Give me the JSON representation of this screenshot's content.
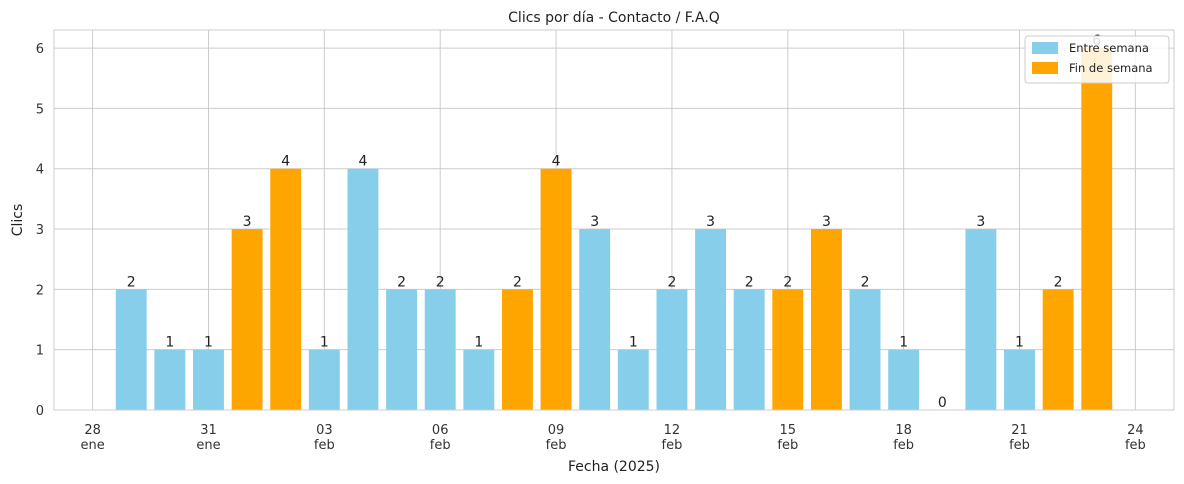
{
  "chart_data": {
    "type": "bar",
    "title": "Clics por día - Contacto / F.A.Q",
    "xlabel": "Fecha (2025)",
    "ylabel": "Clics",
    "ylim": [
      0,
      6.3
    ],
    "yticks": [
      0,
      1,
      2,
      3,
      4,
      5,
      6
    ],
    "grid": true,
    "legend_position": "top-right",
    "categories": [
      "2025-01-29",
      "2025-01-30",
      "2025-01-31",
      "2025-02-01",
      "2025-02-02",
      "2025-02-03",
      "2025-02-04",
      "2025-02-05",
      "2025-02-06",
      "2025-02-07",
      "2025-02-08",
      "2025-02-09",
      "2025-02-10",
      "2025-02-11",
      "2025-02-12",
      "2025-02-13",
      "2025-02-14",
      "2025-02-15",
      "2025-02-16",
      "2025-02-17",
      "2025-02-18",
      "2025-02-19",
      "2025-02-20",
      "2025-02-21",
      "2025-02-22",
      "2025-02-23"
    ],
    "values": [
      2,
      1,
      1,
      3,
      4,
      1,
      4,
      2,
      2,
      1,
      2,
      4,
      3,
      1,
      2,
      3,
      2,
      2,
      3,
      2,
      1,
      0,
      3,
      1,
      2,
      6
    ],
    "bar_series": [
      "Entre semana",
      "Entre semana",
      "Entre semana",
      "Fin de semana",
      "Fin de semana",
      "Entre semana",
      "Entre semana",
      "Entre semana",
      "Entre semana",
      "Entre semana",
      "Fin de semana",
      "Fin de semana",
      "Entre semana",
      "Entre semana",
      "Entre semana",
      "Entre semana",
      "Entre semana",
      "Fin de semana",
      "Fin de semana",
      "Entre semana",
      "Entre semana",
      "Entre semana",
      "Entre semana",
      "Entre semana",
      "Fin de semana",
      "Fin de semana"
    ],
    "series": [
      {
        "name": "Entre semana",
        "color": "#87ceeb"
      },
      {
        "name": "Fin de semana",
        "color": "#ffa500"
      }
    ],
    "xticks": [
      {
        "date": "2025-01-28",
        "day": "28",
        "month": "ene"
      },
      {
        "date": "2025-01-31",
        "day": "31",
        "month": "ene"
      },
      {
        "date": "2025-02-03",
        "day": "03",
        "month": "feb"
      },
      {
        "date": "2025-02-06",
        "day": "06",
        "month": "feb"
      },
      {
        "date": "2025-02-09",
        "day": "09",
        "month": "feb"
      },
      {
        "date": "2025-02-12",
        "day": "12",
        "month": "feb"
      },
      {
        "date": "2025-02-15",
        "day": "15",
        "month": "feb"
      },
      {
        "date": "2025-02-18",
        "day": "18",
        "month": "feb"
      },
      {
        "date": "2025-02-21",
        "day": "21",
        "month": "feb"
      },
      {
        "date": "2025-02-24",
        "day": "24",
        "month": "feb"
      }
    ],
    "xlim": [
      "2025-01-27",
      "2025-02-25"
    ]
  }
}
